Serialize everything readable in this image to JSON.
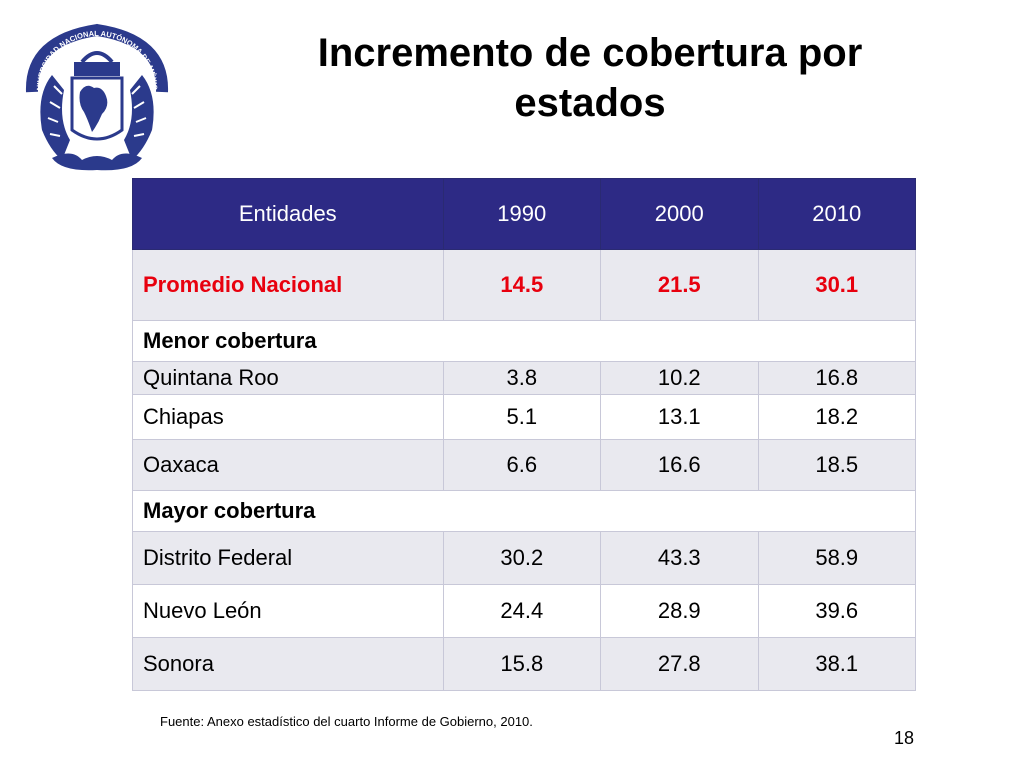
{
  "title": "Incremento de cobertura por estados",
  "logo": {
    "icon": "unam-seal-icon",
    "text": "UNIVERSIDAD NACIONAL AUTÓNOMA DE MÉXICO"
  },
  "table": {
    "headers": [
      "Entidades",
      "1990",
      "2000",
      "2010"
    ],
    "national": {
      "label": "Promedio Nacional",
      "values": [
        "14.5",
        "21.5",
        "30.1"
      ]
    },
    "sections": [
      {
        "label": "Menor cobertura",
        "rows": [
          {
            "name": "Quintana Roo",
            "values": [
              "3.8",
              "10.2",
              "16.8"
            ]
          },
          {
            "name": "Chiapas",
            "values": [
              "5.1",
              "13.1",
              "18.2"
            ]
          },
          {
            "name": "Oaxaca",
            "values": [
              "6.6",
              "16.6",
              "18.5"
            ]
          }
        ]
      },
      {
        "label": "Mayor cobertura",
        "rows": [
          {
            "name": "Distrito Federal",
            "values": [
              "30.2",
              "43.3",
              "58.9"
            ]
          },
          {
            "name": "Nuevo León",
            "values": [
              "24.4",
              "28.9",
              "39.6"
            ]
          },
          {
            "name": "Sonora",
            "values": [
              "15.8",
              "27.8",
              "38.1"
            ]
          }
        ]
      }
    ]
  },
  "source": "Fuente: Anexo estadístico del cuarto Informe de Gobierno, 2010.",
  "page_number": "18",
  "colors": {
    "header_bg": "#2d2a85",
    "national_text": "#e8000e",
    "alt_row": "#e9e9ef",
    "seal": "#2b3a8c"
  }
}
